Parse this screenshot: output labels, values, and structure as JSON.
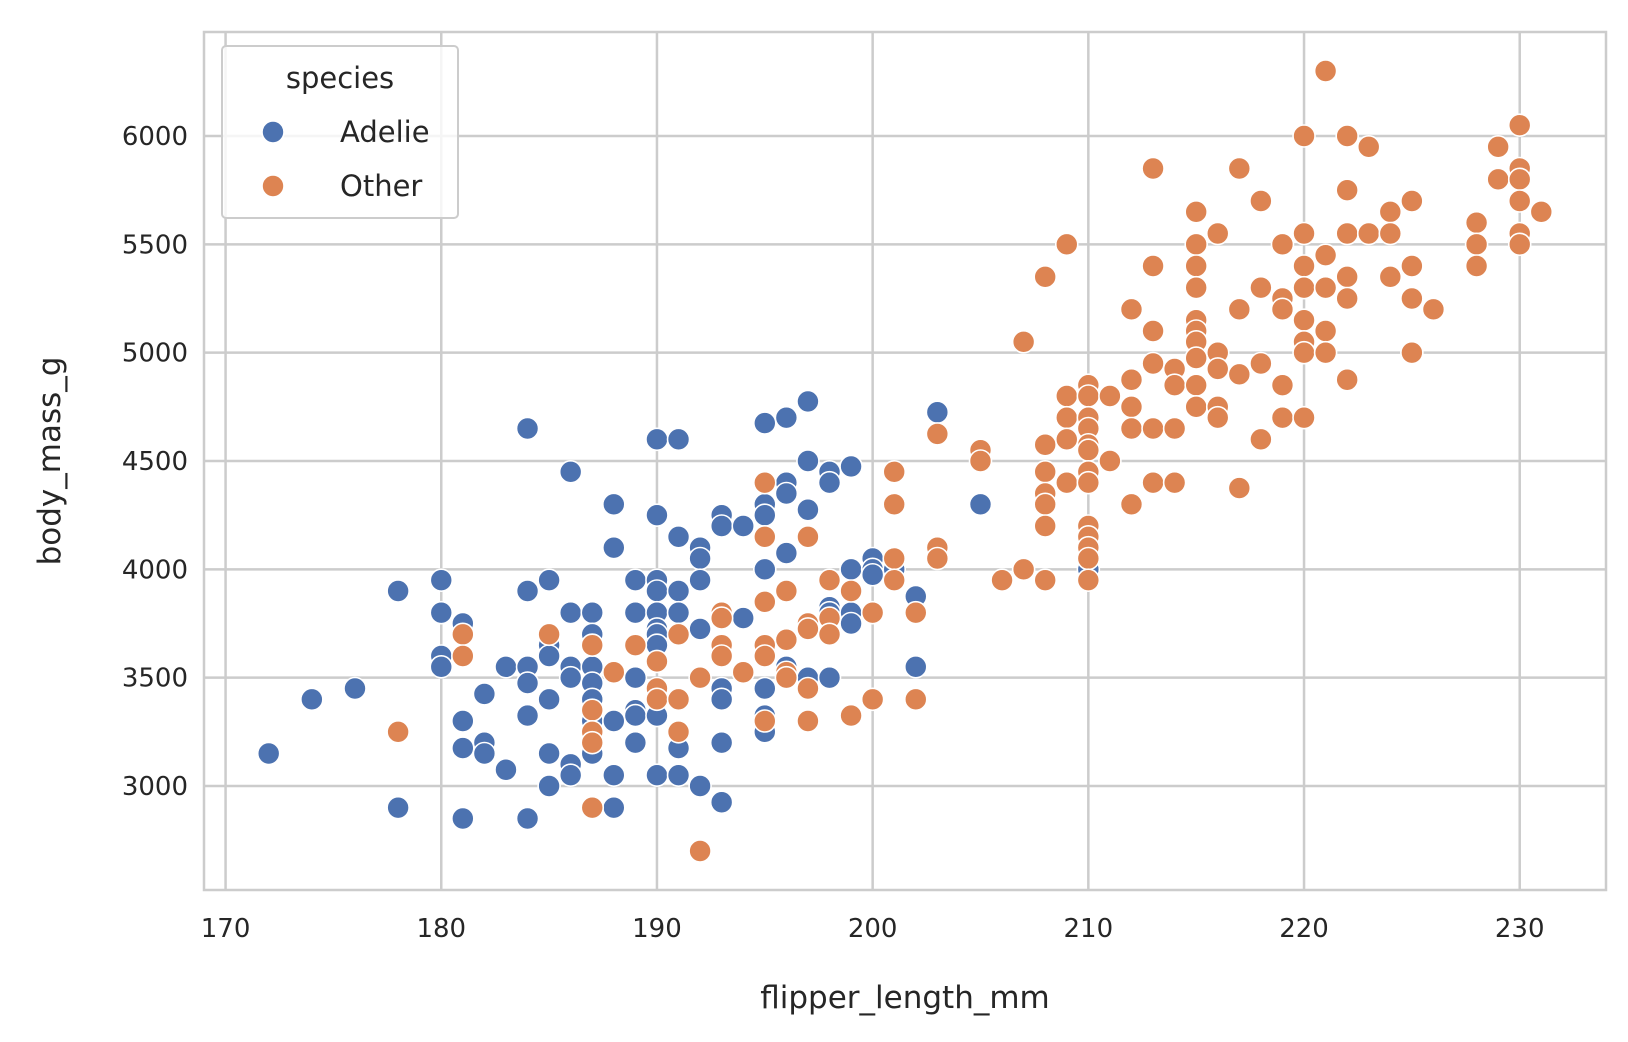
{
  "chart_data": {
    "type": "scatter",
    "xlabel": "flipper_length_mm",
    "ylabel": "body_mass_g",
    "xlim": [
      169,
      234
    ],
    "ylim": [
      2520,
      6480
    ],
    "xticks": [
      170,
      180,
      190,
      200,
      210,
      220,
      230
    ],
    "yticks": [
      3000,
      3500,
      4000,
      4500,
      5000,
      5500,
      6000
    ],
    "grid": true,
    "legend": {
      "title": "species",
      "placement": "top-left"
    },
    "series": [
      {
        "name": "Adelie",
        "color": "#4C72B0",
        "points": [
          [
            172,
            3150
          ],
          [
            174,
            3400
          ],
          [
            176,
            3450
          ],
          [
            178,
            3900
          ],
          [
            178,
            2900
          ],
          [
            180,
            3950
          ],
          [
            180,
            3800
          ],
          [
            180,
            3600
          ],
          [
            180,
            3550
          ],
          [
            181,
            3750
          ],
          [
            181,
            3300
          ],
          [
            181,
            3175
          ],
          [
            181,
            2850
          ],
          [
            182,
            3425
          ],
          [
            182,
            3200
          ],
          [
            182,
            3150
          ],
          [
            183,
            3550
          ],
          [
            183,
            3075
          ],
          [
            184,
            4650
          ],
          [
            184,
            3900
          ],
          [
            184,
            3550
          ],
          [
            184,
            3475
          ],
          [
            184,
            3325
          ],
          [
            184,
            2850
          ],
          [
            185,
            3950
          ],
          [
            185,
            3650
          ],
          [
            185,
            3600
          ],
          [
            185,
            3400
          ],
          [
            185,
            3150
          ],
          [
            185,
            3000
          ],
          [
            186,
            4450
          ],
          [
            186,
            3800
          ],
          [
            186,
            3550
          ],
          [
            186,
            3500
          ],
          [
            186,
            3100
          ],
          [
            186,
            3050
          ],
          [
            187,
            3800
          ],
          [
            187,
            3700
          ],
          [
            187,
            3650
          ],
          [
            187,
            3550
          ],
          [
            187,
            3475
          ],
          [
            187,
            3400
          ],
          [
            187,
            3300
          ],
          [
            187,
            3150
          ],
          [
            188,
            4300
          ],
          [
            188,
            4100
          ],
          [
            188,
            3300
          ],
          [
            188,
            3050
          ],
          [
            188,
            2900
          ],
          [
            189,
            3950
          ],
          [
            189,
            3800
          ],
          [
            189,
            3500
          ],
          [
            189,
            3350
          ],
          [
            189,
            3325
          ],
          [
            189,
            3200
          ],
          [
            190,
            4600
          ],
          [
            190,
            4250
          ],
          [
            190,
            3950
          ],
          [
            190,
            3900
          ],
          [
            190,
            3800
          ],
          [
            190,
            3725
          ],
          [
            190,
            3700
          ],
          [
            190,
            3650
          ],
          [
            190,
            3400
          ],
          [
            190,
            3325
          ],
          [
            190,
            3050
          ],
          [
            191,
            4600
          ],
          [
            191,
            4150
          ],
          [
            191,
            3900
          ],
          [
            191,
            3800
          ],
          [
            191,
            3175
          ],
          [
            191,
            3050
          ],
          [
            192,
            4100
          ],
          [
            192,
            4050
          ],
          [
            192,
            3950
          ],
          [
            192,
            3725
          ],
          [
            192,
            3000
          ],
          [
            193,
            4250
          ],
          [
            193,
            4200
          ],
          [
            193,
            3800
          ],
          [
            193,
            3450
          ],
          [
            193,
            3400
          ],
          [
            193,
            3200
          ],
          [
            193,
            2925
          ],
          [
            194,
            4200
          ],
          [
            194,
            3775
          ],
          [
            195,
            4675
          ],
          [
            195,
            4300
          ],
          [
            195,
            4250
          ],
          [
            195,
            4000
          ],
          [
            195,
            3650
          ],
          [
            195,
            3450
          ],
          [
            195,
            3325
          ],
          [
            195,
            3250
          ],
          [
            196,
            4700
          ],
          [
            196,
            4400
          ],
          [
            196,
            4350
          ],
          [
            196,
            4075
          ],
          [
            196,
            3900
          ],
          [
            196,
            3550
          ],
          [
            197,
            4775
          ],
          [
            197,
            4500
          ],
          [
            197,
            4275
          ],
          [
            197,
            3750
          ],
          [
            197,
            3500
          ],
          [
            198,
            4450
          ],
          [
            198,
            4400
          ],
          [
            198,
            3825
          ],
          [
            198,
            3800
          ],
          [
            198,
            3500
          ],
          [
            199,
            4475
          ],
          [
            199,
            4000
          ],
          [
            199,
            3800
          ],
          [
            199,
            3750
          ],
          [
            200,
            4050
          ],
          [
            200,
            4000
          ],
          [
            200,
            3975
          ],
          [
            201,
            4000
          ],
          [
            202,
            3875
          ],
          [
            202,
            3550
          ],
          [
            203,
            4725
          ],
          [
            205,
            4300
          ],
          [
            210,
            4000
          ]
        ]
      },
      {
        "name": "Other",
        "color": "#DD8452",
        "points": [
          [
            178,
            3250
          ],
          [
            181,
            3700
          ],
          [
            181,
            3600
          ],
          [
            185,
            3700
          ],
          [
            187,
            3650
          ],
          [
            187,
            3350
          ],
          [
            187,
            3250
          ],
          [
            187,
            3200
          ],
          [
            187,
            2900
          ],
          [
            188,
            3525
          ],
          [
            189,
            3650
          ],
          [
            190,
            3575
          ],
          [
            190,
            3450
          ],
          [
            190,
            3400
          ],
          [
            191,
            3700
          ],
          [
            191,
            3400
          ],
          [
            191,
            3250
          ],
          [
            192,
            3500
          ],
          [
            192,
            2700
          ],
          [
            193,
            3800
          ],
          [
            193,
            3775
          ],
          [
            193,
            3650
          ],
          [
            193,
            3600
          ],
          [
            194,
            3525
          ],
          [
            195,
            4400
          ],
          [
            195,
            4150
          ],
          [
            195,
            3850
          ],
          [
            195,
            3650
          ],
          [
            195,
            3600
          ],
          [
            195,
            3300
          ],
          [
            196,
            3900
          ],
          [
            196,
            3675
          ],
          [
            196,
            3525
          ],
          [
            196,
            3500
          ],
          [
            197,
            4150
          ],
          [
            197,
            3750
          ],
          [
            197,
            3725
          ],
          [
            197,
            3450
          ],
          [
            197,
            3300
          ],
          [
            198,
            3950
          ],
          [
            198,
            3775
          ],
          [
            198,
            3700
          ],
          [
            199,
            3900
          ],
          [
            199,
            3325
          ],
          [
            200,
            3800
          ],
          [
            200,
            3400
          ],
          [
            201,
            4450
          ],
          [
            201,
            4300
          ],
          [
            201,
            4050
          ],
          [
            201,
            3950
          ],
          [
            202,
            3800
          ],
          [
            202,
            3400
          ],
          [
            203,
            4625
          ],
          [
            203,
            4100
          ],
          [
            203,
            4050
          ],
          [
            205,
            4550
          ],
          [
            205,
            4500
          ],
          [
            206,
            3950
          ],
          [
            207,
            5050
          ],
          [
            207,
            4000
          ],
          [
            208,
            5350
          ],
          [
            208,
            4575
          ],
          [
            208,
            4450
          ],
          [
            208,
            4350
          ],
          [
            208,
            4300
          ],
          [
            208,
            4200
          ],
          [
            208,
            3950
          ],
          [
            209,
            5500
          ],
          [
            209,
            4800
          ],
          [
            209,
            4700
          ],
          [
            209,
            4600
          ],
          [
            209,
            4400
          ],
          [
            210,
            4850
          ],
          [
            210,
            4800
          ],
          [
            210,
            4700
          ],
          [
            210,
            4650
          ],
          [
            210,
            4575
          ],
          [
            210,
            4550
          ],
          [
            210,
            4450
          ],
          [
            210,
            4400
          ],
          [
            210,
            4200
          ],
          [
            210,
            4150
          ],
          [
            210,
            4100
          ],
          [
            210,
            4050
          ],
          [
            210,
            3950
          ],
          [
            211,
            4800
          ],
          [
            211,
            4500
          ],
          [
            212,
            5200
          ],
          [
            212,
            4875
          ],
          [
            212,
            4750
          ],
          [
            212,
            4650
          ],
          [
            212,
            4300
          ],
          [
            213,
            5850
          ],
          [
            213,
            5400
          ],
          [
            213,
            5100
          ],
          [
            213,
            4950
          ],
          [
            213,
            4650
          ],
          [
            213,
            4400
          ],
          [
            214,
            4925
          ],
          [
            214,
            4850
          ],
          [
            214,
            4650
          ],
          [
            214,
            4400
          ],
          [
            215,
            5650
          ],
          [
            215,
            5500
          ],
          [
            215,
            5400
          ],
          [
            215,
            5300
          ],
          [
            215,
            5150
          ],
          [
            215,
            5100
          ],
          [
            215,
            5050
          ],
          [
            215,
            4975
          ],
          [
            215,
            4850
          ],
          [
            215,
            4750
          ],
          [
            216,
            5550
          ],
          [
            216,
            5000
          ],
          [
            216,
            4925
          ],
          [
            216,
            4750
          ],
          [
            216,
            4700
          ],
          [
            217,
            5850
          ],
          [
            217,
            5200
          ],
          [
            217,
            4900
          ],
          [
            217,
            4375
          ],
          [
            218,
            5700
          ],
          [
            218,
            5300
          ],
          [
            218,
            4950
          ],
          [
            218,
            4600
          ],
          [
            219,
            5500
          ],
          [
            219,
            5250
          ],
          [
            219,
            5200
          ],
          [
            219,
            4850
          ],
          [
            219,
            4700
          ],
          [
            220,
            6000
          ],
          [
            220,
            5550
          ],
          [
            220,
            5400
          ],
          [
            220,
            5300
          ],
          [
            220,
            5150
          ],
          [
            220,
            5050
          ],
          [
            220,
            5000
          ],
          [
            220,
            4700
          ],
          [
            221,
            6300
          ],
          [
            221,
            5450
          ],
          [
            221,
            5300
          ],
          [
            221,
            5100
          ],
          [
            221,
            5000
          ],
          [
            222,
            6000
          ],
          [
            222,
            5750
          ],
          [
            222,
            5550
          ],
          [
            222,
            5350
          ],
          [
            222,
            5250
          ],
          [
            222,
            4875
          ],
          [
            223,
            5950
          ],
          [
            223,
            5550
          ],
          [
            224,
            5650
          ],
          [
            224,
            5550
          ],
          [
            224,
            5350
          ],
          [
            225,
            5700
          ],
          [
            225,
            5400
          ],
          [
            225,
            5250
          ],
          [
            225,
            5000
          ],
          [
            226,
            5200
          ],
          [
            228,
            5600
          ],
          [
            228,
            5500
          ],
          [
            228,
            5400
          ],
          [
            229,
            5950
          ],
          [
            229,
            5800
          ],
          [
            230,
            6050
          ],
          [
            230,
            5850
          ],
          [
            230,
            5800
          ],
          [
            230,
            5700
          ],
          [
            230,
            5550
          ],
          [
            230,
            5500
          ],
          [
            231,
            5650
          ]
        ]
      }
    ]
  }
}
